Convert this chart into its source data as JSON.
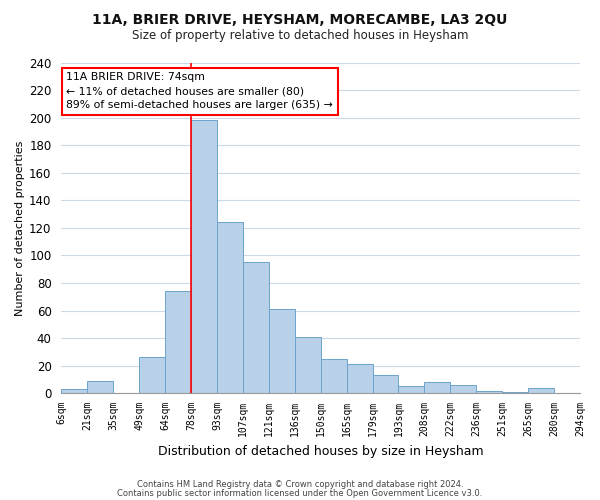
{
  "title": "11A, BRIER DRIVE, HEYSHAM, MORECAMBE, LA3 2QU",
  "subtitle": "Size of property relative to detached houses in Heysham",
  "xlabel": "Distribution of detached houses by size in Heysham",
  "ylabel": "Number of detached properties",
  "footer_line1": "Contains HM Land Registry data © Crown copyright and database right 2024.",
  "footer_line2": "Contains public sector information licensed under the Open Government Licence v3.0.",
  "bar_labels": [
    "6sqm",
    "21sqm",
    "35sqm",
    "49sqm",
    "64sqm",
    "78sqm",
    "93sqm",
    "107sqm",
    "121sqm",
    "136sqm",
    "150sqm",
    "165sqm",
    "179sqm",
    "193sqm",
    "208sqm",
    "222sqm",
    "236sqm",
    "251sqm",
    "265sqm",
    "280sqm",
    "294sqm"
  ],
  "bar_values": [
    3,
    9,
    0,
    26,
    74,
    198,
    124,
    95,
    61,
    41,
    25,
    21,
    13,
    5,
    8,
    6,
    2,
    1,
    4,
    0
  ],
  "bar_color": "#b8d0e8",
  "bar_edge_color": "#6ba3cc",
  "ylim": [
    0,
    240
  ],
  "yticks": [
    0,
    20,
    40,
    60,
    80,
    100,
    120,
    140,
    160,
    180,
    200,
    220,
    240
  ],
  "annotation_title": "11A BRIER DRIVE: 74sqm",
  "annotation_line1": "← 11% of detached houses are smaller (80)",
  "annotation_line2": "89% of semi-detached houses are larger (635) →",
  "background_color": "#ffffff",
  "grid_color": "#ccd9e8"
}
